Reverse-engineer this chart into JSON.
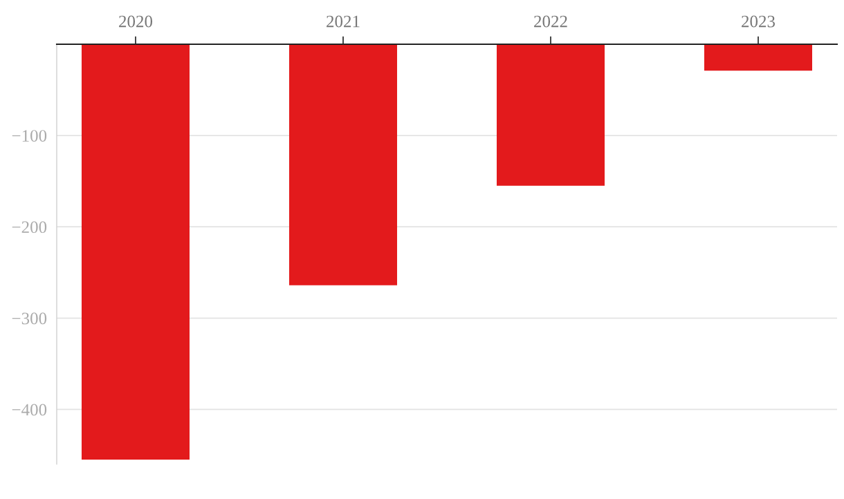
{
  "chart_data": {
    "type": "bar",
    "categories": [
      "2020",
      "2021",
      "2022",
      "2023"
    ],
    "values": [
      -455,
      -264,
      -155,
      -29
    ],
    "color": "#e31a1c",
    "ylim": [
      -460,
      0
    ],
    "yticks": [
      {
        "value": -400,
        "label": "−400"
      },
      {
        "value": -300,
        "label": "−300"
      },
      {
        "value": -200,
        "label": "−200"
      },
      {
        "value": -100,
        "label": "−100"
      }
    ],
    "grid": "y"
  }
}
